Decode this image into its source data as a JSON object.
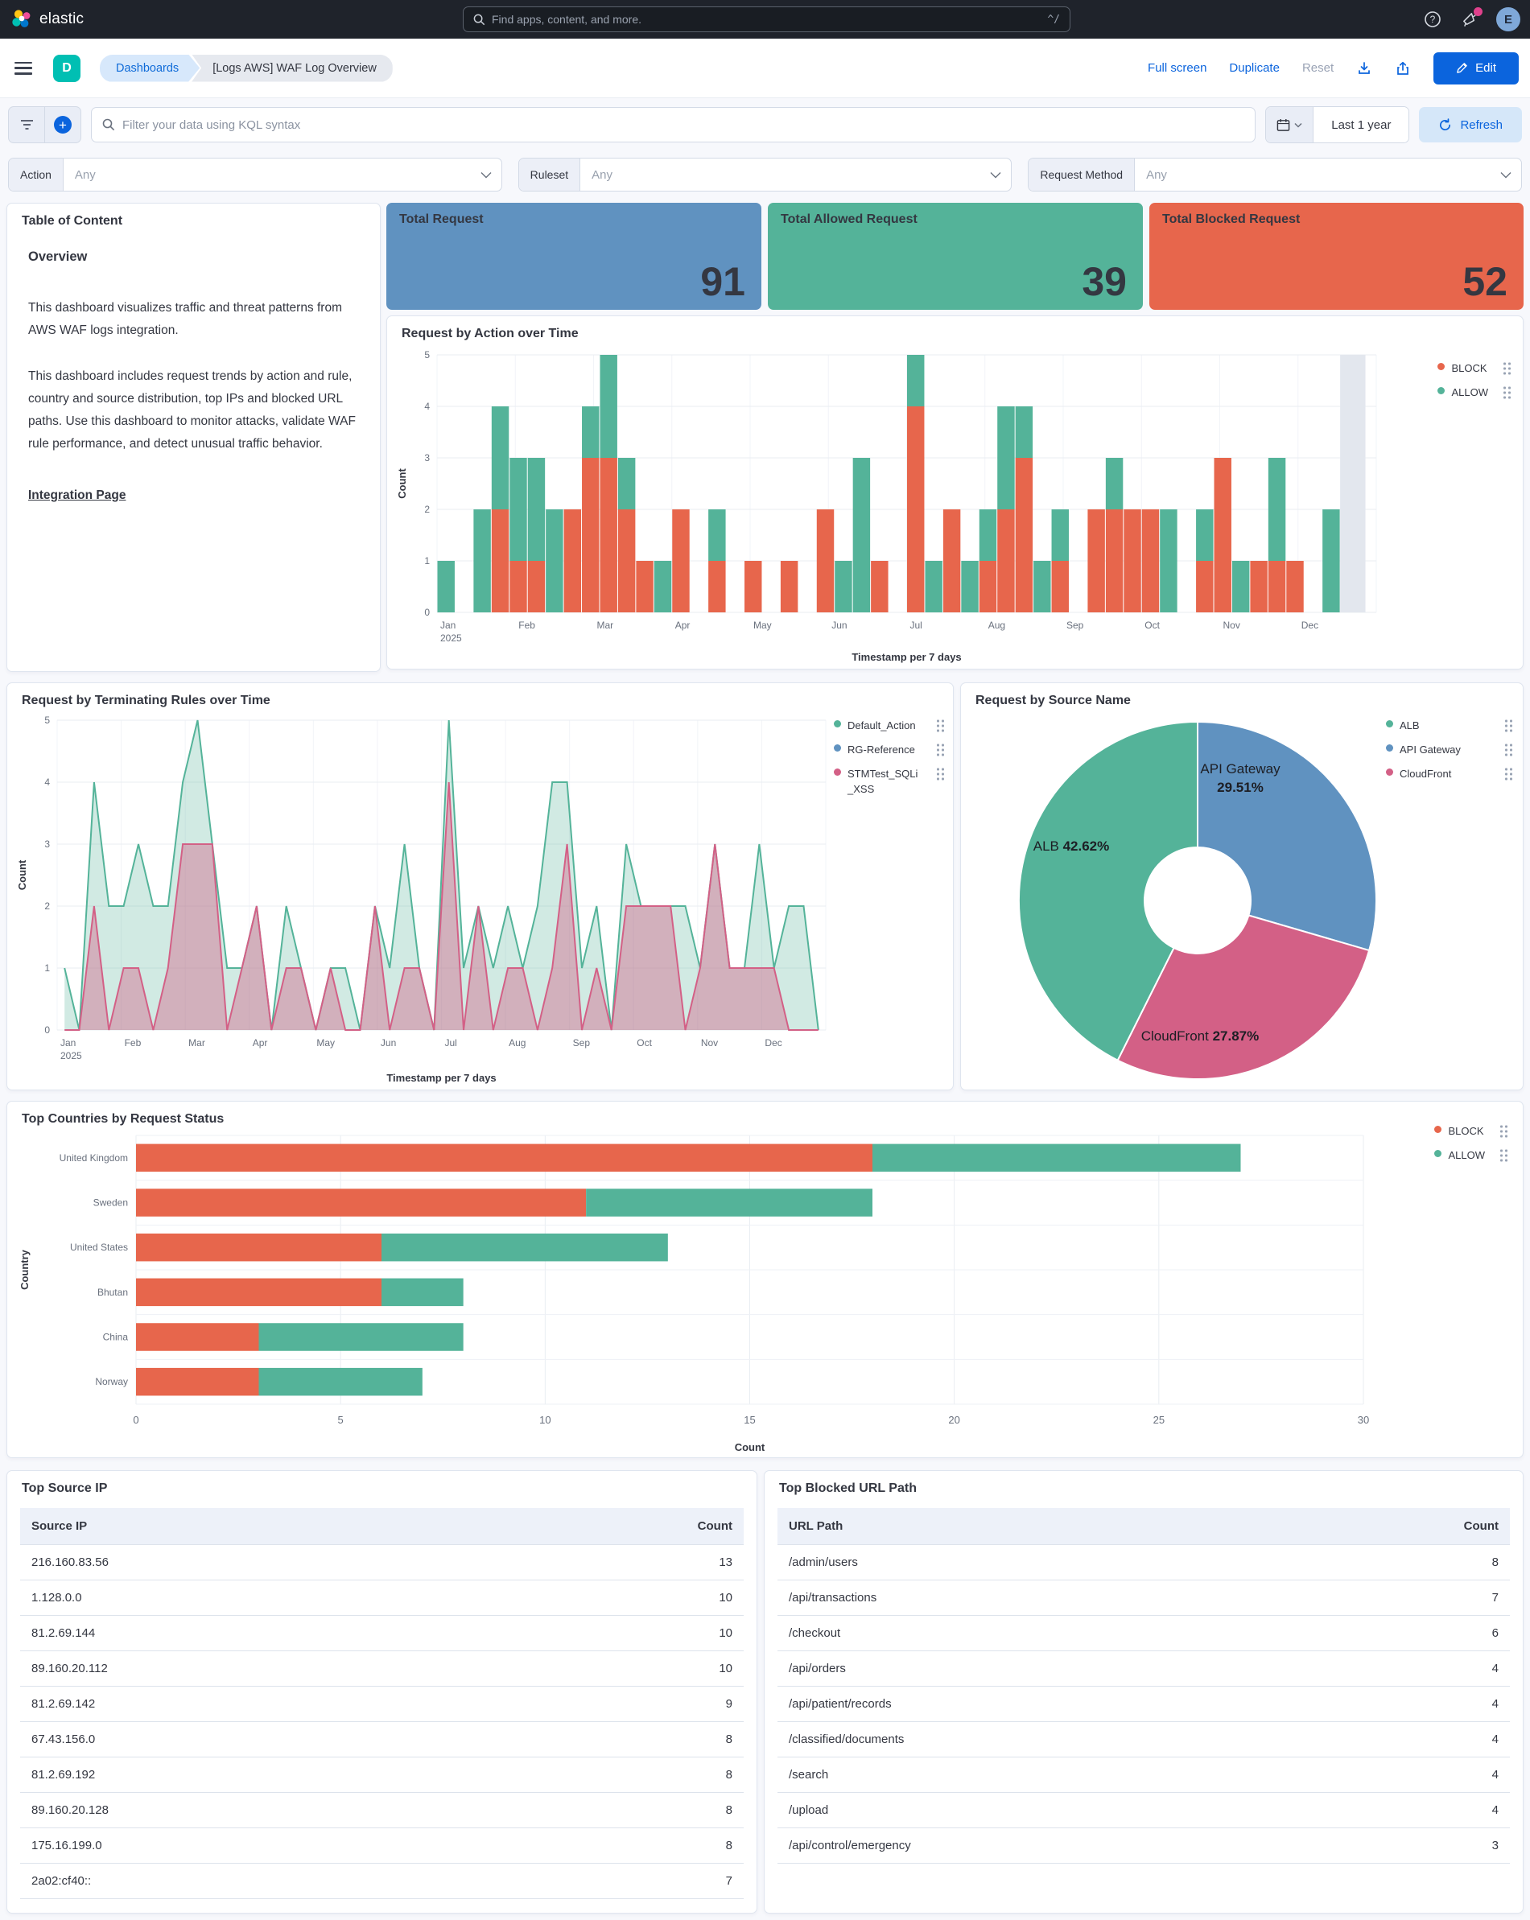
{
  "topnav": {
    "brand": "elastic",
    "search_placeholder": "Find apps, content, and more.",
    "search_shortcut": "^/",
    "avatar_initial": "E"
  },
  "toolbar": {
    "space_initial": "D",
    "breadcrumbs": [
      "Dashboards",
      "[Logs AWS] WAF Log Overview"
    ],
    "full_screen": "Full screen",
    "duplicate": "Duplicate",
    "reset": "Reset",
    "edit": "Edit"
  },
  "querybar": {
    "kql_placeholder": "Filter your data using KQL syntax",
    "time_range": "Last 1 year",
    "refresh_label": "Refresh"
  },
  "filters": [
    {
      "label": "Action",
      "value": "Any"
    },
    {
      "label": "Ruleset",
      "value": "Any"
    },
    {
      "label": "Request Method",
      "value": "Any"
    }
  ],
  "toc": {
    "panel_title": "Table of Content",
    "heading": "Overview",
    "paragraph1": "This dashboard visualizes traffic and threat patterns from AWS WAF logs integration.",
    "paragraph2": "This dashboard includes request trends by action and rule, country and source distribution, top IPs and blocked URL paths. Use this dashboard to monitor attacks, validate WAF rule performance, and detect unusual traffic behavior.",
    "link": "Integration Page"
  },
  "metrics": [
    {
      "label": "Total Request",
      "value": "91",
      "color": "#6092C0"
    },
    {
      "label": "Total Allowed Request",
      "value": "39",
      "color": "#54B399"
    },
    {
      "label": "Total Blocked Request",
      "value": "52",
      "color": "#E7664C"
    }
  ],
  "chart_data": [
    {
      "id": "action_over_time",
      "type": "bar",
      "stacked": true,
      "title": "Request by Action over Time",
      "xlabel": "Timestamp per 7 days",
      "ylabel": "Count",
      "ylim": [
        0,
        5
      ],
      "yticks": [
        0,
        1,
        2,
        3,
        4,
        5
      ],
      "months": [
        "Jan",
        "Feb",
        "Mar",
        "Apr",
        "May",
        "Jun",
        "Jul",
        "Aug",
        "Sep",
        "Oct",
        "Nov",
        "Dec"
      ],
      "year_label": "2025",
      "legend_position": "right",
      "incomplete_band_week": 50,
      "series": [
        {
          "name": "BLOCK",
          "color": "#E7664C",
          "values": [
            0,
            0,
            0,
            2,
            1,
            1,
            0,
            2,
            3,
            3,
            2,
            1,
            0,
            2,
            0,
            1,
            0,
            1,
            0,
            1,
            0,
            2,
            0,
            0,
            1,
            0,
            4,
            0,
            2,
            0,
            1,
            2,
            3,
            0,
            1,
            0,
            2,
            2,
            2,
            2,
            0,
            0,
            1,
            3,
            0,
            1,
            1,
            1,
            0,
            0,
            0,
            0
          ]
        },
        {
          "name": "ALLOW",
          "color": "#54B399",
          "values": [
            1,
            0,
            2,
            2,
            2,
            2,
            2,
            0,
            1,
            2,
            1,
            0,
            1,
            0,
            0,
            1,
            0,
            0,
            0,
            0,
            0,
            0,
            1,
            3,
            0,
            0,
            1,
            1,
            0,
            1,
            1,
            2,
            1,
            1,
            1,
            0,
            0,
            1,
            0,
            0,
            2,
            0,
            1,
            0,
            1,
            0,
            2,
            0,
            0,
            2,
            0,
            0
          ]
        }
      ]
    },
    {
      "id": "terminating_rules_over_time",
      "type": "area",
      "title": "Request by Terminating Rules over Time",
      "xlabel": "Timestamp per 7 days",
      "ylabel": "Count",
      "ylim": [
        0,
        5
      ],
      "yticks": [
        0,
        1,
        2,
        3,
        4,
        5
      ],
      "months": [
        "Jan",
        "Feb",
        "Mar",
        "Apr",
        "May",
        "Jun",
        "Jul",
        "Aug",
        "Sep",
        "Oct",
        "Nov",
        "Dec"
      ],
      "year_label": "2025",
      "legend_position": "right",
      "series": [
        {
          "name": "Default_Action",
          "color": "#54B399",
          "values": [
            1,
            0,
            4,
            2,
            2,
            3,
            2,
            2,
            4,
            5,
            3,
            1,
            1,
            2,
            0,
            2,
            1,
            0,
            1,
            1,
            0,
            2,
            1,
            3,
            1,
            0,
            5,
            1,
            2,
            1,
            2,
            1,
            2,
            4,
            4,
            1,
            2,
            0,
            3,
            2,
            2,
            2,
            2,
            1,
            3,
            1,
            1,
            3,
            1,
            2,
            2,
            0
          ]
        },
        {
          "name": "RG-Reference",
          "color": "#6092C0",
          "values": [
            0,
            0,
            0,
            0,
            0,
            0,
            0,
            0,
            0,
            0,
            0,
            0,
            0,
            0,
            0,
            0,
            0,
            0,
            0,
            0,
            0,
            0,
            0,
            0,
            0,
            0,
            0,
            0,
            0,
            0,
            0,
            0,
            0,
            0,
            0,
            0,
            0,
            0,
            0,
            0,
            0,
            0,
            0,
            0,
            0,
            0,
            0,
            0,
            0,
            0,
            0,
            0
          ]
        },
        {
          "name": "STMTest_SQLi_XSS",
          "color": "#D36086",
          "values": [
            0,
            0,
            2,
            0,
            1,
            1,
            0,
            1,
            3,
            3,
            3,
            0,
            1,
            2,
            0,
            1,
            1,
            0,
            1,
            0,
            0,
            2,
            0,
            1,
            1,
            0,
            4,
            0,
            2,
            0,
            1,
            1,
            0,
            1,
            3,
            0,
            1,
            0,
            2,
            2,
            2,
            2,
            0,
            1,
            3,
            1,
            1,
            1,
            1,
            0,
            0,
            0
          ]
        }
      ]
    },
    {
      "id": "request_by_source_name",
      "type": "pie",
      "title": "Request by Source Name",
      "donut": true,
      "slices": [
        {
          "name": "API Gateway",
          "pct": 29.51,
          "label": "API Gateway 29.51%",
          "color": "#6092C0"
        },
        {
          "name": "CloudFront",
          "pct": 27.87,
          "label": "CloudFront 27.87%",
          "color": "#D36086"
        },
        {
          "name": "ALB",
          "pct": 42.62,
          "label": "ALB 42.62%",
          "color": "#54B399"
        }
      ],
      "legend": [
        {
          "name": "ALB",
          "color": "#54B399"
        },
        {
          "name": "API Gateway",
          "color": "#6092C0"
        },
        {
          "name": "CloudFront",
          "color": "#D36086"
        }
      ],
      "legend_position": "right"
    },
    {
      "id": "top_countries_by_request_status",
      "type": "bar",
      "orientation": "horizontal",
      "stacked": true,
      "title": "Top Countries by Request Status",
      "xlabel": "Count",
      "ylabel": "Country",
      "xlim": [
        0,
        30
      ],
      "xticks": [
        0,
        5,
        10,
        15,
        20,
        25,
        30
      ],
      "categories": [
        "United Kingdom",
        "Sweden",
        "United States",
        "Bhutan",
        "China",
        "Norway"
      ],
      "legend_position": "right",
      "series": [
        {
          "name": "BLOCK",
          "color": "#E7664C",
          "values": [
            18,
            11,
            6,
            6,
            3,
            3
          ]
        },
        {
          "name": "ALLOW",
          "color": "#54B399",
          "values": [
            9,
            7,
            7,
            2,
            5,
            4
          ]
        }
      ]
    }
  ],
  "tables": [
    {
      "title": "Top Source IP",
      "columns": [
        "Source IP",
        "Count"
      ],
      "rows": [
        [
          "216.160.83.56",
          13
        ],
        [
          "1.128.0.0",
          10
        ],
        [
          "81.2.69.144",
          10
        ],
        [
          "89.160.20.112",
          10
        ],
        [
          "81.2.69.142",
          9
        ],
        [
          "67.43.156.0",
          8
        ],
        [
          "81.2.69.192",
          8
        ],
        [
          "89.160.20.128",
          8
        ],
        [
          "175.16.199.0",
          8
        ],
        [
          "2a02:cf40::",
          7
        ]
      ]
    },
    {
      "title": "Top Blocked URL Path",
      "columns": [
        "URL Path",
        "Count"
      ],
      "rows": [
        [
          "/admin/users",
          8
        ],
        [
          "/api/transactions",
          7
        ],
        [
          "/checkout",
          6
        ],
        [
          "/api/orders",
          4
        ],
        [
          "/api/patient/records",
          4
        ],
        [
          "/classified/documents",
          4
        ],
        [
          "/search",
          4
        ],
        [
          "/upload",
          4
        ],
        [
          "/api/control/emergency",
          3
        ]
      ]
    }
  ]
}
